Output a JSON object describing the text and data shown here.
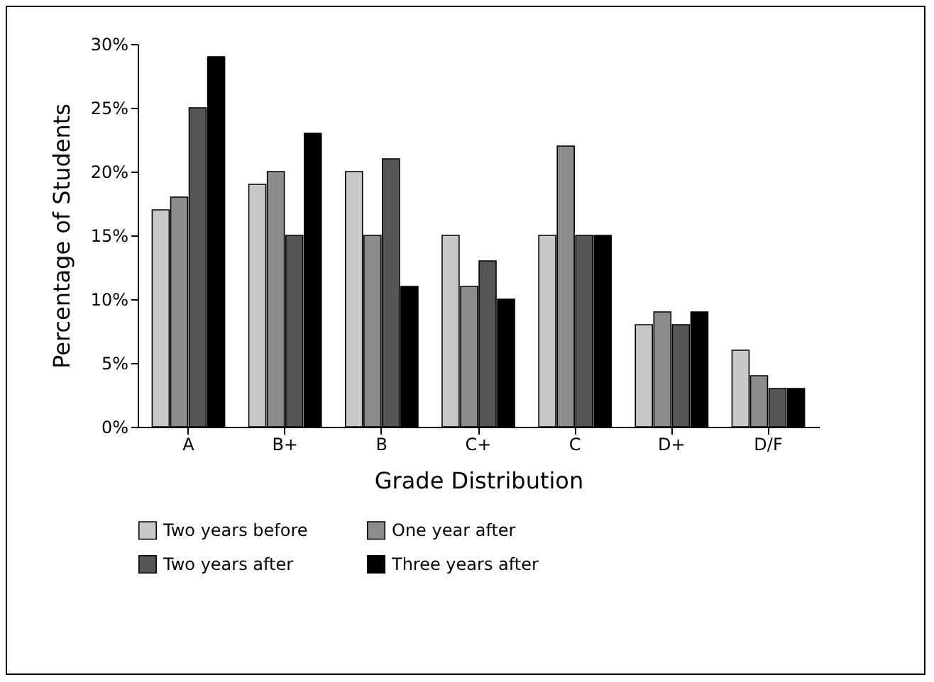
{
  "chart_data": {
    "type": "bar",
    "xlabel": "Grade Distribution",
    "ylabel": "Percentage of Students",
    "categories": [
      "A",
      "B+",
      "B",
      "C+",
      "C",
      "D+",
      "D/F"
    ],
    "series": [
      {
        "name": "Two years before",
        "color": "#c8c8c8",
        "values": [
          17,
          19,
          20,
          15,
          15,
          8,
          6
        ]
      },
      {
        "name": "One year after",
        "color": "#8c8c8c",
        "values": [
          18,
          20,
          15,
          11,
          22,
          9,
          4
        ]
      },
      {
        "name": "Two years after",
        "color": "#555555",
        "values": [
          25,
          15,
          21,
          13,
          15,
          8,
          3
        ]
      },
      {
        "name": "Three years after",
        "color": "#000000",
        "values": [
          29,
          23,
          11,
          10,
          15,
          9,
          3
        ]
      }
    ],
    "ylim": [
      0,
      30
    ],
    "yticks": [
      {
        "value": 0,
        "label": "0%"
      },
      {
        "value": 5,
        "label": "5%"
      },
      {
        "value": 10,
        "label": "10%"
      },
      {
        "value": 15,
        "label": "15%"
      },
      {
        "value": 20,
        "label": "20%"
      },
      {
        "value": 25,
        "label": "25%"
      },
      {
        "value": 30,
        "label": "30%"
      }
    ],
    "grid": false,
    "legend": "bottom"
  }
}
